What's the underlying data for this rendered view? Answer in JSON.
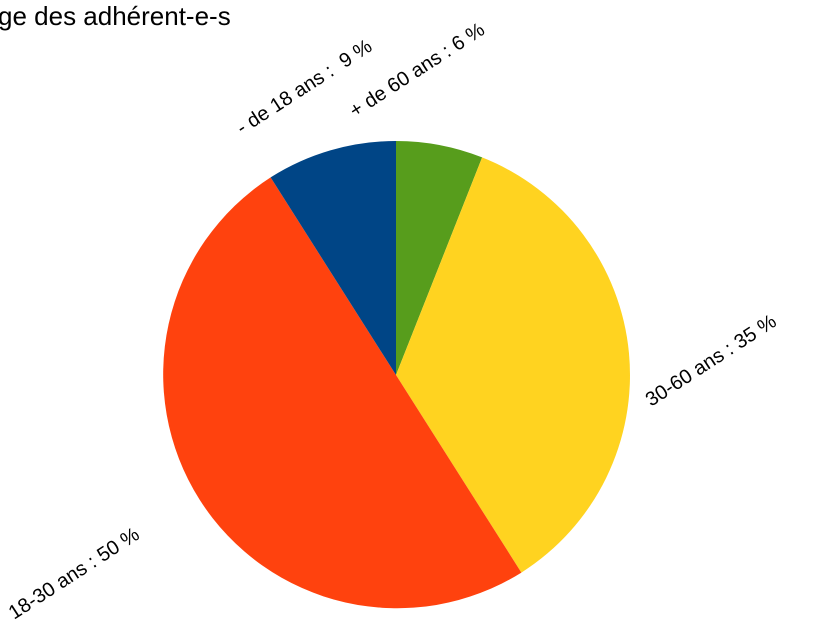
{
  "chart_data": {
    "type": "pie",
    "title": "ge des adhérent-e-s",
    "slices": [
      {
        "label": "+ de 60 ans : 6 %",
        "category": "+ de 60 ans",
        "value": 6,
        "color": "#579D1C"
      },
      {
        "label": "30-60 ans : 35 %",
        "category": "30-60 ans",
        "value": 35,
        "color": "#FFD320"
      },
      {
        "label": "18-30 ans : 50 %",
        "category": "18-30 ans",
        "value": 50,
        "color": "#FF420E"
      },
      {
        "label": "- de 18 ans :  9 %",
        "category": "- de 18 ans",
        "value": 9,
        "color": "#004586"
      }
    ],
    "legend": "none",
    "label_placement": "outside, rotated along radius"
  }
}
